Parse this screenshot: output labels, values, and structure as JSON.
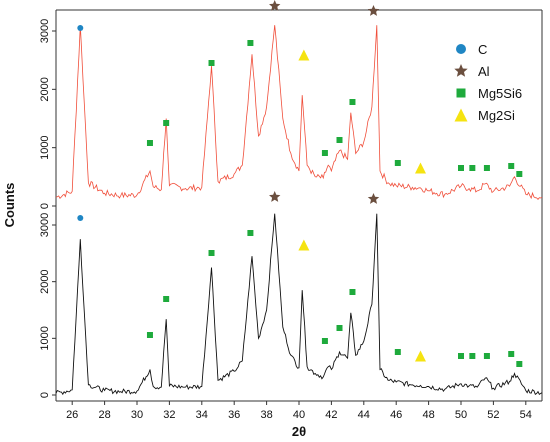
{
  "chart_data": {
    "type": "line",
    "xlabel": "2θ",
    "ylabel": "Counts",
    "xlim": [
      25,
      55
    ],
    "ylim": [
      0,
      3200
    ],
    "grid": false,
    "legend_placement": "top-right",
    "x_ticks": [
      26,
      28,
      30,
      32,
      34,
      36,
      38,
      40,
      42,
      44,
      46,
      48,
      50,
      52,
      54
    ],
    "y_ticks": [
      0,
      1000,
      2000,
      3000
    ],
    "legend": [
      {
        "label": "C",
        "marker": "circle",
        "color": "#1f86c4"
      },
      {
        "label": "Al",
        "marker": "star",
        "color": "#6b4f3f"
      },
      {
        "label": "Mg5Si6",
        "marker": "square",
        "color": "#1eaa3c"
      },
      {
        "label": "Mg2Si",
        "marker": "triangle",
        "color": "#f5e311"
      }
    ],
    "series": [
      {
        "color": "#f04e3a",
        "x": [
          25,
          26,
          26.5,
          27,
          28,
          29,
          30,
          30.8,
          31,
          31.5,
          31.8,
          32,
          33,
          34,
          34.6,
          35,
          36,
          36.5,
          37.1,
          37.5,
          38,
          38.5,
          39,
          39.5,
          40,
          40.2,
          40.5,
          41,
          41.5,
          41.8,
          42,
          42.5,
          43,
          43.2,
          43.5,
          44,
          44.5,
          44.8,
          45,
          45.5,
          46,
          47,
          47.5,
          48,
          49,
          50,
          50.5,
          51,
          51.5,
          52,
          53,
          53.3,
          54,
          55
        ],
        "y": [
          150,
          250,
          3100,
          400,
          220,
          180,
          190,
          600,
          330,
          280,
          1500,
          350,
          300,
          320,
          2400,
          420,
          550,
          700,
          2600,
          1200,
          1700,
          3100,
          1500,
          900,
          600,
          1900,
          700,
          500,
          480,
          700,
          600,
          950,
          800,
          1600,
          900,
          1100,
          1700,
          3100,
          600,
          400,
          350,
          320,
          310,
          260,
          200,
          340,
          300,
          260,
          380,
          250,
          340,
          500,
          200,
          150
        ]
      },
      {
        "color": "#111111",
        "x": [
          25,
          26,
          26.5,
          27,
          28,
          29,
          30,
          30.8,
          31,
          31.5,
          31.8,
          32,
          33,
          34,
          34.6,
          35,
          36,
          36.5,
          37.1,
          37.5,
          38,
          38.5,
          39,
          39.5,
          40,
          40.2,
          40.5,
          41,
          41.5,
          41.8,
          42,
          42.5,
          43,
          43.2,
          43.5,
          44,
          44.5,
          44.8,
          45,
          45.5,
          46,
          47,
          47.5,
          48,
          49,
          50,
          50.5,
          51,
          51.5,
          52,
          53,
          53.3,
          54,
          55
        ],
        "y": [
          30,
          90,
          2750,
          180,
          80,
          60,
          70,
          450,
          150,
          140,
          1340,
          160,
          140,
          150,
          2250,
          260,
          420,
          600,
          2450,
          1000,
          1500,
          3200,
          1200,
          700,
          480,
          1850,
          500,
          380,
          320,
          500,
          450,
          760,
          650,
          1450,
          700,
          950,
          1600,
          3200,
          450,
          260,
          230,
          180,
          170,
          150,
          100,
          200,
          160,
          140,
          300,
          120,
          240,
          380,
          80,
          40
        ]
      }
    ]
  }
}
